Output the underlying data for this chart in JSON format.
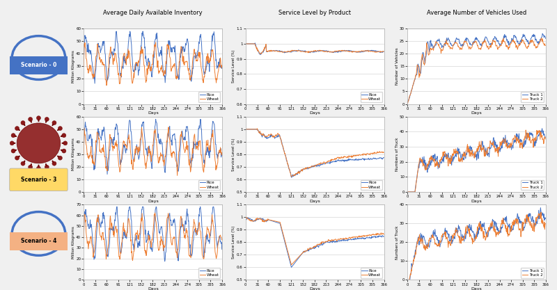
{
  "col_titles": [
    "Average Daily Available Inventory",
    "Service Level by Product",
    "Average Number of Vehicles Used"
  ],
  "row_labels": [
    "Scenario - 0",
    "Scenario - 3",
    "Scenario - 4"
  ],
  "x_ticks": [
    0,
    31,
    60,
    91,
    121,
    152,
    182,
    213,
    244,
    274,
    305,
    335,
    366
  ],
  "color_blue": "#4472C4",
  "color_orange": "#ED7D31",
  "col_title_bg": "#D9D9D9",
  "plot_border_bg": "#E8E8E8",
  "inventory_ylim_s0": [
    0,
    60
  ],
  "inventory_ylim_s3": [
    0,
    60
  ],
  "inventory_ylim_s4": [
    0,
    70
  ],
  "service_ylim_s0": [
    0.6,
    1.1
  ],
  "service_ylim_s34": [
    0.5,
    1.1
  ],
  "vehicles_ylim_s0": [
    0,
    30
  ],
  "vehicles_ylim_s3": [
    0,
    50
  ],
  "vehicles_ylim_s4": [
    0,
    40
  ],
  "inv_yticks_s0": [
    0,
    10,
    20,
    30,
    40,
    50,
    60
  ],
  "inv_yticks_s34": [
    0,
    10,
    20,
    30,
    40,
    50,
    60
  ],
  "inv_yticks_s4": [
    0,
    10,
    20,
    30,
    40,
    50,
    60,
    70
  ],
  "svc_yticks_s0": [
    0.6,
    0.7,
    0.8,
    0.9,
    1.0,
    1.1
  ],
  "svc_yticks_s34": [
    0.5,
    0.6,
    0.7,
    0.8,
    0.9,
    1.0,
    1.1
  ],
  "veh_yticks_s0": [
    0,
    5,
    10,
    15,
    20,
    25,
    30
  ],
  "veh_yticks_s3": [
    0,
    10,
    20,
    30,
    40,
    50
  ],
  "veh_yticks_s4": [
    0,
    10,
    20,
    30,
    40
  ]
}
